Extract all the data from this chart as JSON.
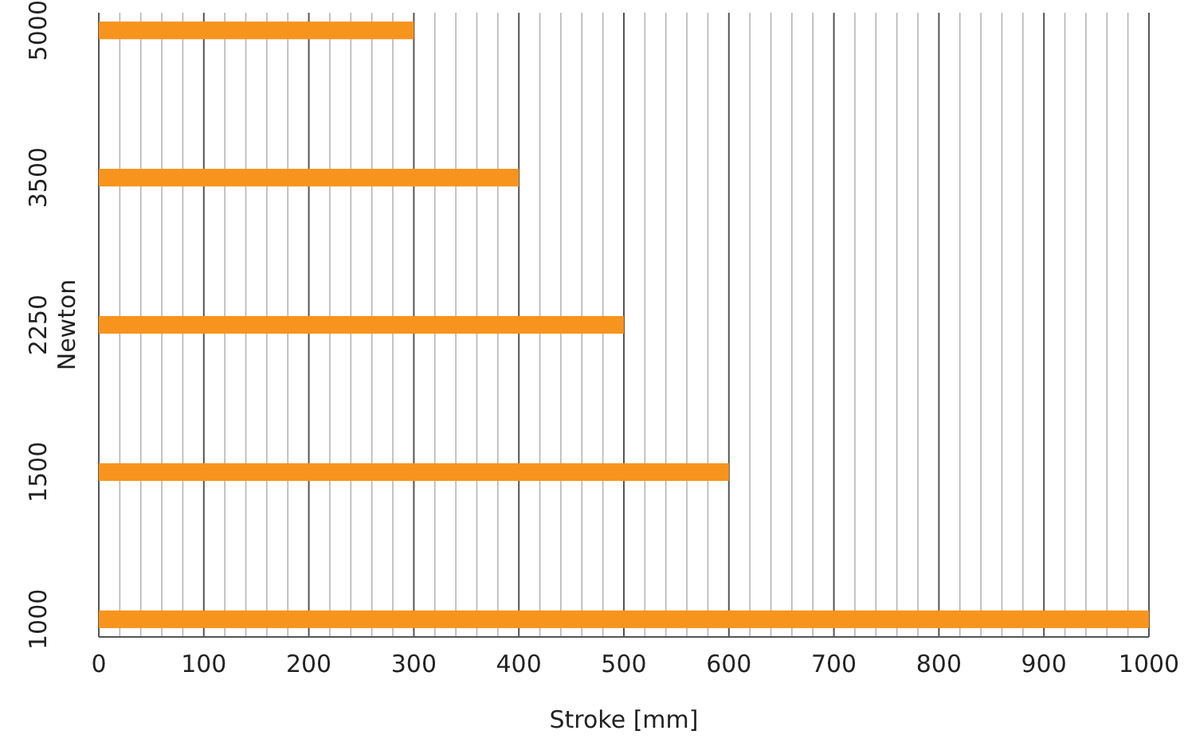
{
  "chart_data": {
    "type": "bar",
    "orientation": "horizontal",
    "xlabel": "Stroke [mm]",
    "ylabel": "Newton",
    "categories": [
      "5000",
      "3500",
      "2250",
      "1500",
      "1000"
    ],
    "values": [
      300,
      400,
      500,
      600,
      1000
    ],
    "color": "#f7941d",
    "xlim": [
      0,
      1000
    ],
    "xticks": [
      0,
      {
        "value": 20,
        "label": null
      },
      {
        "value": 40,
        "label": null
      },
      {
        "value": 60,
        "label": null
      },
      {
        "value": 80,
        "label": null
      },
      100,
      {
        "value": 120,
        "label": null
      },
      {
        "value": 140,
        "label": null
      },
      {
        "value": 160,
        "label": null
      },
      {
        "value": 180,
        "label": null
      },
      200,
      {
        "value": 220,
        "label": null
      },
      {
        "value": 240,
        "label": null
      },
      {
        "value": 260,
        "label": null
      },
      {
        "value": 280,
        "label": null
      },
      300,
      {
        "value": 320,
        "label": null
      },
      {
        "value": 340,
        "label": null
      },
      {
        "value": 360,
        "label": null
      },
      {
        "value": 380,
        "label": null
      },
      400,
      {
        "value": 420,
        "label": null
      },
      {
        "value": 440,
        "label": null
      },
      {
        "value": 460,
        "label": null
      },
      {
        "value": 480,
        "label": null
      },
      500,
      {
        "value": 520,
        "label": null
      },
      {
        "value": 540,
        "label": null
      },
      {
        "value": 560,
        "label": null
      },
      {
        "value": 580,
        "label": null
      },
      600,
      {
        "value": 620,
        "label": null
      },
      {
        "value": 640,
        "label": null
      },
      {
        "value": 660,
        "label": null
      },
      {
        "value": 680,
        "label": null
      },
      700,
      {
        "value": 720,
        "label": null
      },
      {
        "value": 740,
        "label": null
      },
      {
        "value": 760,
        "label": null
      },
      {
        "value": 780,
        "label": null
      },
      800,
      {
        "value": 820,
        "label": null
      },
      {
        "value": 840,
        "label": null
      },
      {
        "value": 860,
        "label": null
      },
      {
        "value": 880,
        "label": null
      },
      900,
      {
        "value": 920,
        "label": null
      },
      {
        "value": 940,
        "label": null
      },
      {
        "value": 960,
        "label": null
      },
      {
        "value": 980,
        "label": null
      },
      1000
    ],
    "grid": true
  }
}
